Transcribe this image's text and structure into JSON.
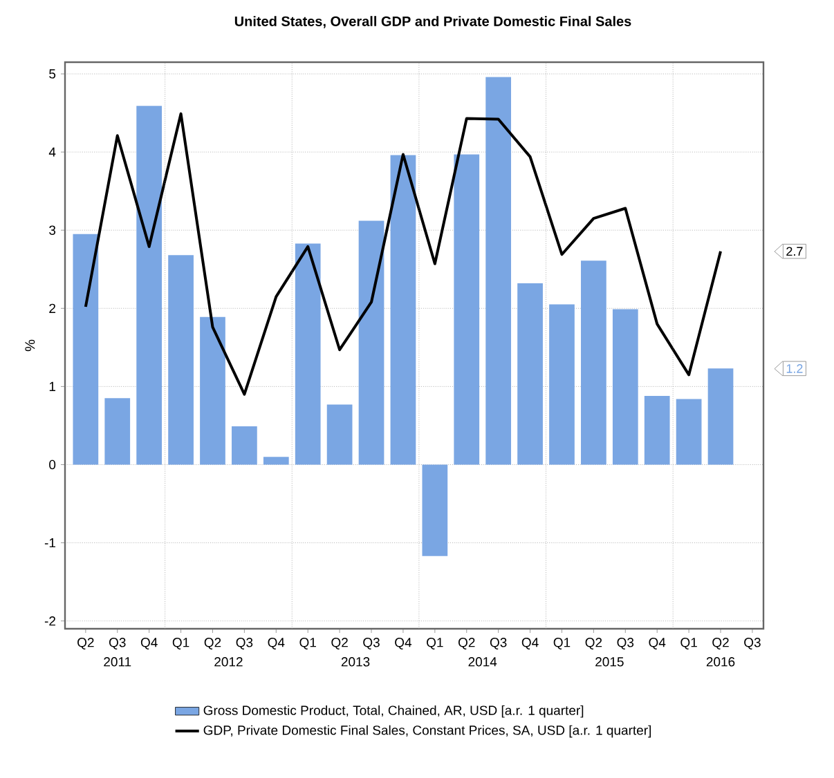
{
  "chart_data": {
    "type": "bar",
    "title": "United States, Overall GDP and Private Domestic Final Sales",
    "ylabel": "%",
    "categories": [
      "Q2",
      "Q3",
      "Q4",
      "Q1",
      "Q2",
      "Q3",
      "Q4",
      "Q1",
      "Q2",
      "Q3",
      "Q4",
      "Q1",
      "Q2",
      "Q3",
      "Q4",
      "Q1",
      "Q2",
      "Q3",
      "Q4",
      "Q1",
      "Q2",
      "Q3"
    ],
    "series": [
      {
        "name": "Gross Domestic Product, Total, Chained, AR, USD [a.r. 1 quarter]",
        "color": "#7aa6e3",
        "values": [
          2.95,
          0.85,
          4.59,
          2.68,
          1.89,
          0.49,
          0.1,
          2.83,
          0.77,
          3.12,
          3.96,
          -1.17,
          3.97,
          4.96,
          2.32,
          2.05,
          2.61,
          1.99,
          0.88,
          0.84,
          1.23,
          null
        ]
      },
      {
        "name": "GDP, Private Domestic Final Sales, Constant Prices, SA, USD [a.r. 1 quarter]",
        "type": "line",
        "color": "#000000",
        "values": [
          2.02,
          4.21,
          2.79,
          4.49,
          1.76,
          0.9,
          2.15,
          2.79,
          1.47,
          2.08,
          3.97,
          2.57,
          4.43,
          4.42,
          3.94,
          2.69,
          3.15,
          3.28,
          1.8,
          1.15,
          2.73,
          null
        ]
      }
    ],
    "ylim": [
      -2.1,
      5.15
    ],
    "yticks": [
      -2,
      -1,
      0,
      1,
      2,
      3,
      4,
      5
    ],
    "grid": true,
    "legend": "bottom",
    "line_style": "solid",
    "annotations": [
      "2011",
      "2012",
      "2013",
      "2014",
      "2015",
      "2016",
      "2.7",
      "1.2"
    ]
  }
}
